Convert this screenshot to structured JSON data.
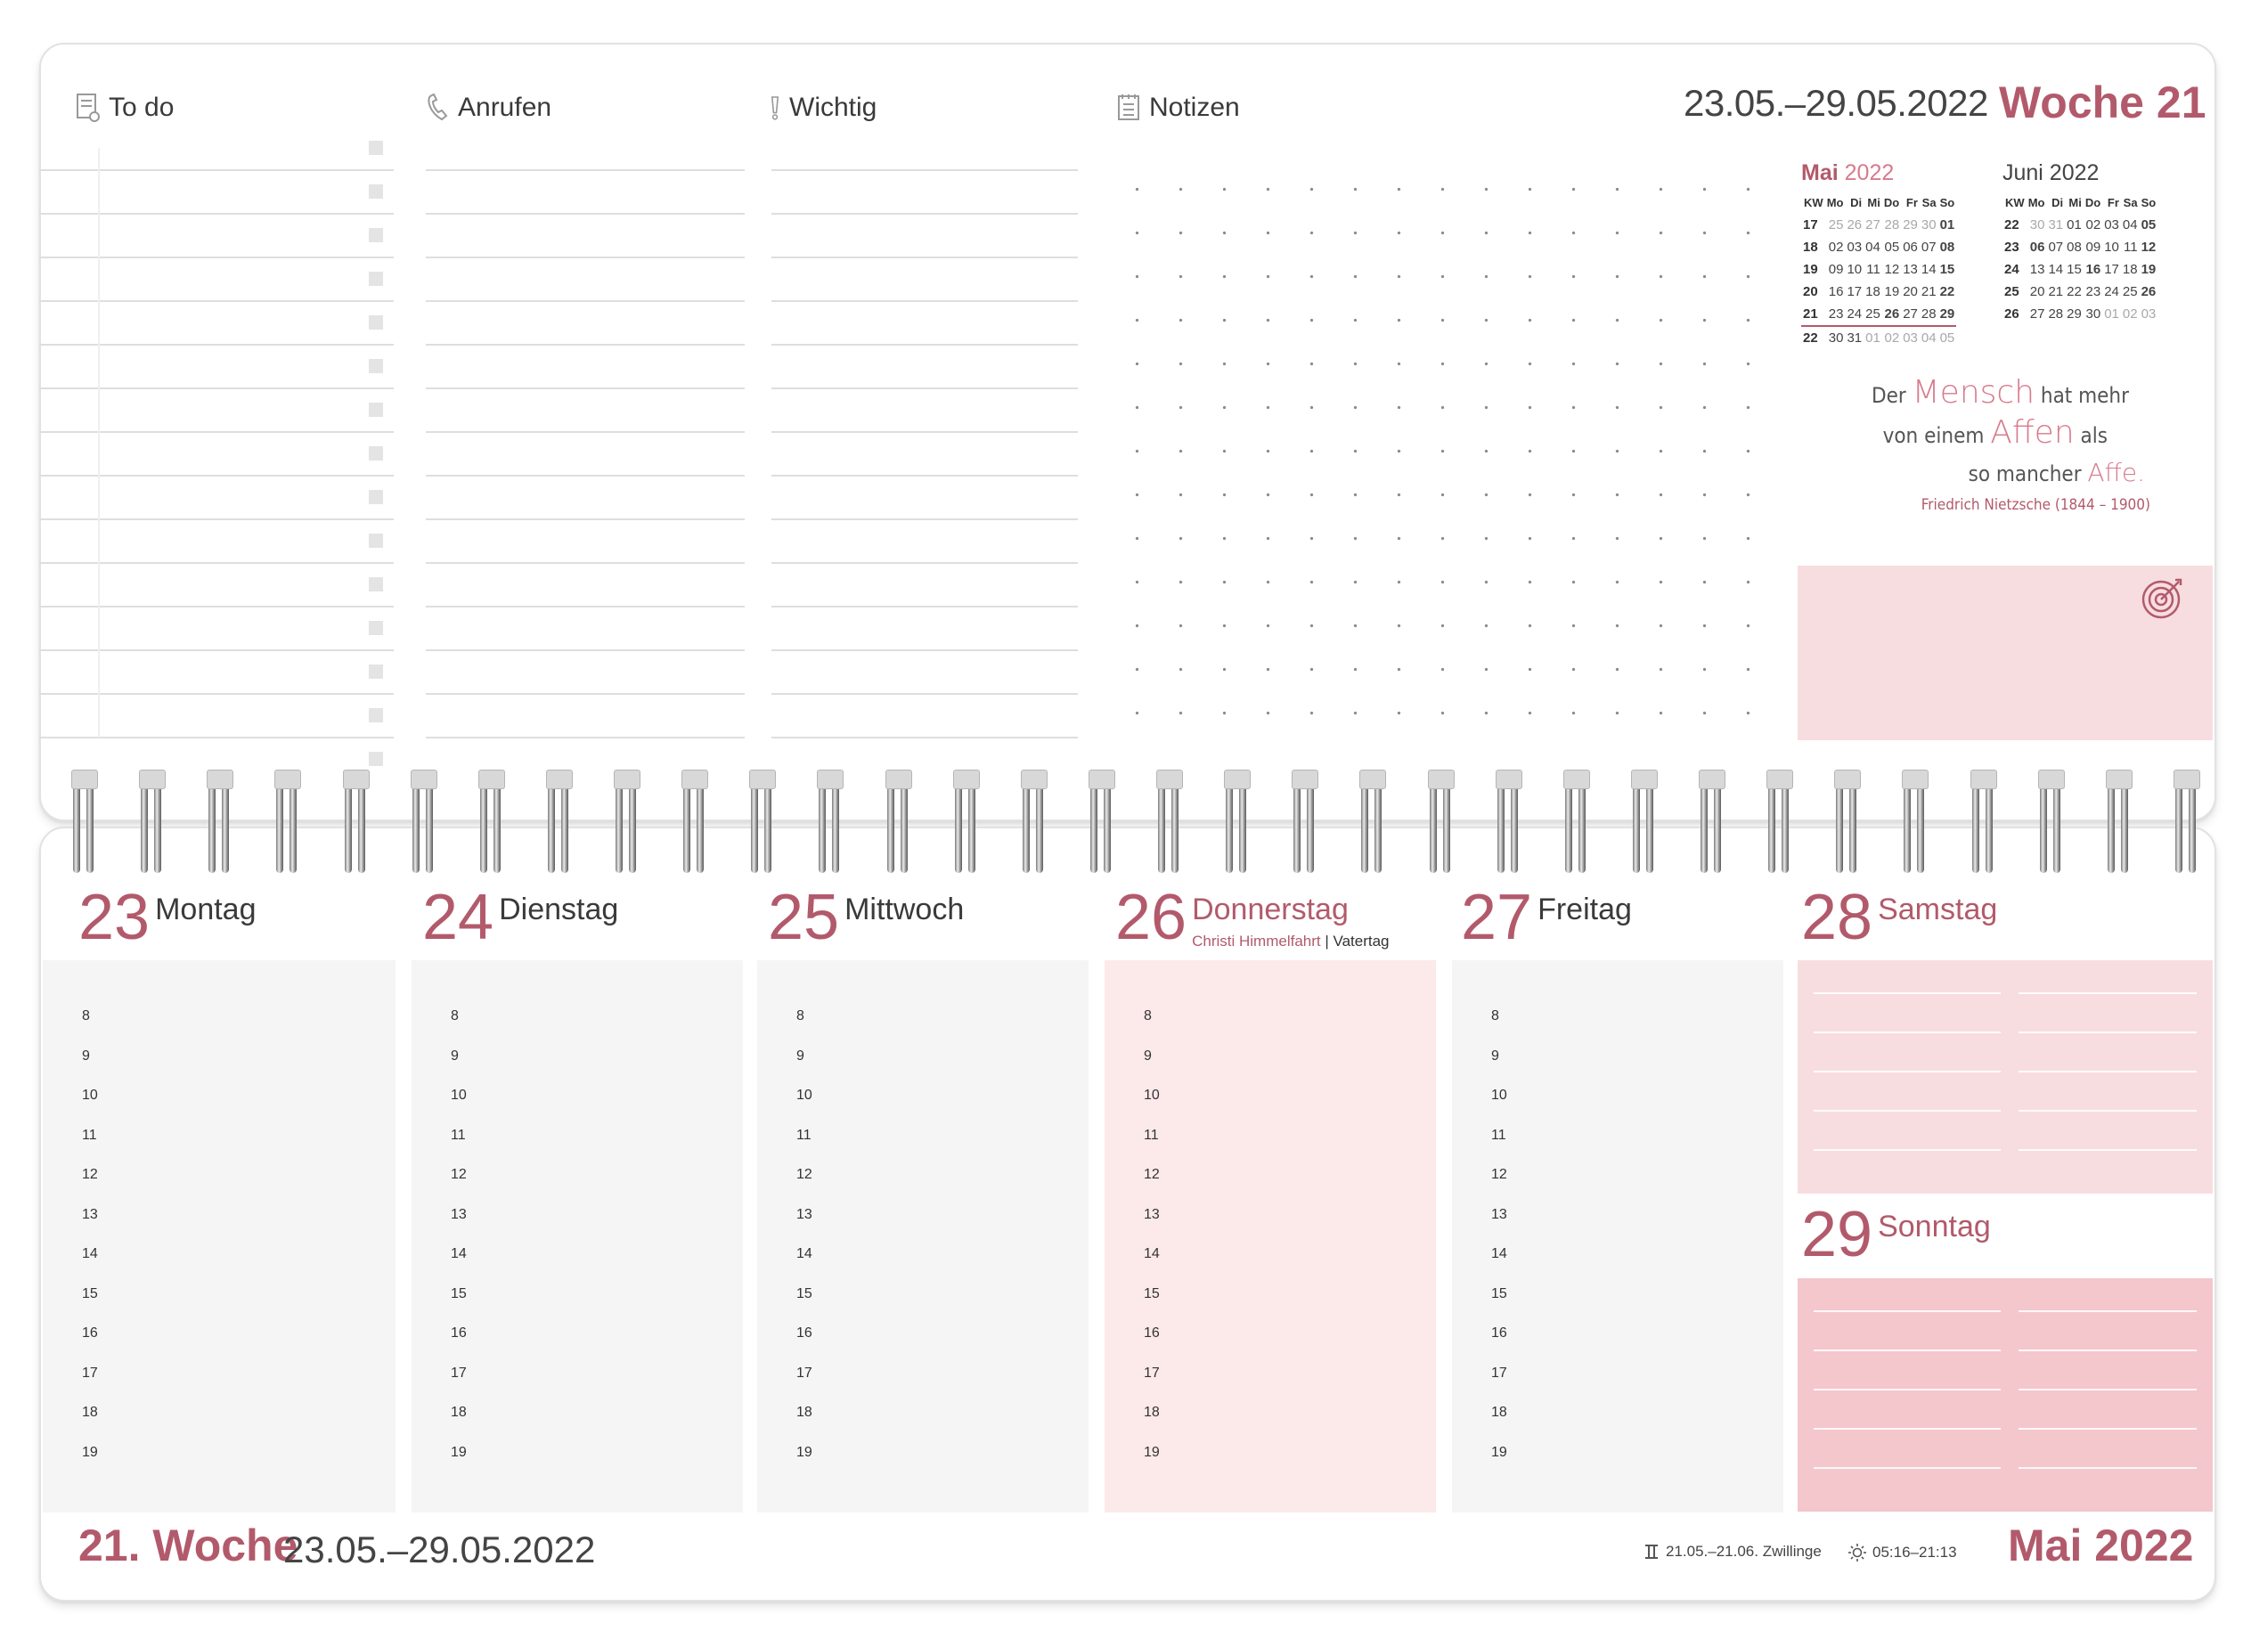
{
  "header": {
    "todo_label": "To do",
    "call_label": "Anrufen",
    "important_label": "Wichtig",
    "notes_label": "Notizen",
    "week_range": "23.05.–29.05.2022",
    "week_title": "Woche 21"
  },
  "mini_calendars": [
    {
      "title": "Mai 2022",
      "title_month": "Mai",
      "title_year": "2022",
      "headers": [
        "KW",
        "Mo",
        "Di",
        "Mi",
        "Do",
        "Fr",
        "Sa",
        "So"
      ],
      "rows": [
        [
          "17",
          "25",
          "26",
          "27",
          "28",
          "29",
          "30",
          "01"
        ],
        [
          "18",
          "02",
          "03",
          "04",
          "05",
          "06",
          "07",
          "08"
        ],
        [
          "19",
          "09",
          "10",
          "11",
          "12",
          "13",
          "14",
          "15"
        ],
        [
          "20",
          "16",
          "17",
          "18",
          "19",
          "20",
          "21",
          "22"
        ],
        [
          "21",
          "23",
          "24",
          "25",
          "26",
          "27",
          "28",
          "29"
        ],
        [
          "22",
          "30",
          "31",
          "01",
          "02",
          "03",
          "04",
          "05"
        ]
      ]
    },
    {
      "title": "Juni 2022",
      "headers": [
        "KW",
        "Mo",
        "Di",
        "Mi",
        "Do",
        "Fr",
        "Sa",
        "So"
      ],
      "rows": [
        [
          "22",
          "30",
          "31",
          "01",
          "02",
          "03",
          "04",
          "05"
        ],
        [
          "23",
          "06",
          "07",
          "08",
          "09",
          "10",
          "11",
          "12"
        ],
        [
          "24",
          "13",
          "14",
          "15",
          "16",
          "17",
          "18",
          "19"
        ],
        [
          "25",
          "20",
          "21",
          "22",
          "23",
          "24",
          "25",
          "26"
        ],
        [
          "26",
          "27",
          "28",
          "29",
          "30",
          "01",
          "02",
          "03"
        ]
      ]
    }
  ],
  "quote": {
    "line1_a": "Der",
    "line1_big": "Mensch",
    "line1_b": "hat mehr",
    "line2_a": "von einem",
    "line2_big": "Affen",
    "line2_b": "als",
    "line3_a": "so mancher",
    "line3_big": "Affe.",
    "author": "Friedrich Nietzsche (1844 – 1900)"
  },
  "days": [
    {
      "num": "23",
      "name": "Montag"
    },
    {
      "num": "24",
      "name": "Dienstag"
    },
    {
      "num": "25",
      "name": "Mittwoch"
    },
    {
      "num": "26",
      "name": "Donnerstag",
      "holiday": "Christi Himmelfahrt",
      "extra": "Vatertag"
    },
    {
      "num": "27",
      "name": "Freitag"
    },
    {
      "num": "28",
      "name": "Samstag"
    },
    {
      "num": "29",
      "name": "Sonntag"
    }
  ],
  "hours": [
    "8",
    "9",
    "10",
    "11",
    "12",
    "13",
    "14",
    "15",
    "16",
    "17",
    "18",
    "19"
  ],
  "footer": {
    "week_label": "21. Woche",
    "week_range": "23.05.–29.05.2022",
    "zodiac": "21.05.–21.06. Zwillinge",
    "sun": "05:16–21:13",
    "month": "Mai 2022"
  },
  "colors": {
    "accent": "#b25a6b",
    "pink_light": "#fce9ea",
    "pink_mid": "#f8dde0",
    "pink_dark": "#f3c7cc"
  }
}
